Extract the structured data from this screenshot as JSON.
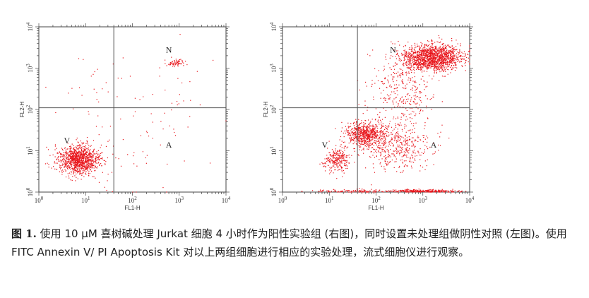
{
  "figure": {
    "caption_label": "图 1.",
    "caption_text": "使用 10 μM 喜树碱处理 Jurkat 细胞 4 小时作为阳性实验组 (右图)，同时设置未处理组做阴性对照 (左图)。使用 FITC Annexin V/ PI Apoptosis Kit 对以上两组细胞进行相应的实验处理，流式细胞仪进行观察。",
    "dot_color": "#e8141a",
    "gate_color": "#555555"
  },
  "chart_data": [
    {
      "type": "scatter",
      "x_scale": "log",
      "y_scale": "log",
      "xlim": [
        1,
        10000
      ],
      "ylim": [
        1,
        10000
      ],
      "xlabel": "FL1-H",
      "ylabel": "FL2-H",
      "x_tick_labels": [
        "10^0",
        "10^1",
        "10^2",
        "10^3",
        "10^4"
      ],
      "y_tick_labels": [
        "10^0",
        "10^1",
        "10^2",
        "10^3",
        "10^4"
      ],
      "gates": {
        "x": 40,
        "y": 110
      },
      "quadrant_labels": [
        {
          "text": "N",
          "x": 600,
          "y": 2400
        },
        {
          "text": "V",
          "x": 4,
          "y": 15
        },
        {
          "text": "A",
          "x": 600,
          "y": 12
        }
      ],
      "populations": [
        {
          "cx": 7,
          "cy": 6,
          "sx": 0.22,
          "sy": 0.18,
          "n": 1100
        },
        {
          "cx": 900,
          "cy": 1350,
          "sx": 0.11,
          "sy": 0.05,
          "n": 70
        },
        {
          "cx": 120,
          "cy": 60,
          "sx": 0.9,
          "sy": 0.9,
          "n": 110
        }
      ]
    },
    {
      "type": "scatter",
      "x_scale": "log",
      "y_scale": "log",
      "xlim": [
        1,
        10000
      ],
      "ylim": [
        1,
        10000
      ],
      "xlabel": "FL1-H",
      "ylabel": "FL2-H",
      "x_tick_labels": [
        "10^0",
        "10^1",
        "10^2",
        "10^3",
        "10^4"
      ],
      "y_tick_labels": [
        "10^0",
        "10^1",
        "10^2",
        "10^3",
        "10^4"
      ],
      "gates": {
        "x": 40,
        "y": 110
      },
      "quadrant_labels": [
        {
          "text": "N",
          "x": 230,
          "y": 2400
        },
        {
          "text": "V",
          "x": 8,
          "y": 12
        },
        {
          "text": "A",
          "x": 1700,
          "y": 12
        }
      ],
      "populations": [
        {
          "cx": 1600,
          "cy": 1800,
          "sx": 0.32,
          "sy": 0.16,
          "n": 1500
        },
        {
          "cx": 60,
          "cy": 25,
          "sx": 0.22,
          "sy": 0.16,
          "n": 700
        },
        {
          "cx": 15,
          "cy": 6,
          "sx": 0.14,
          "sy": 0.14,
          "n": 260
        },
        {
          "cx": 300,
          "cy": 12,
          "sx": 0.35,
          "sy": 0.25,
          "n": 400
        },
        {
          "cx": 400,
          "cy": 250,
          "sx": 0.35,
          "sy": 0.5,
          "n": 350
        },
        {
          "cx": 1000,
          "cy": 1.05,
          "sx": 0.35,
          "sy": 0.02,
          "n": 260
        },
        {
          "cx": 30,
          "cy": 1.05,
          "sx": 0.5,
          "sy": 0.02,
          "n": 120
        }
      ]
    }
  ]
}
